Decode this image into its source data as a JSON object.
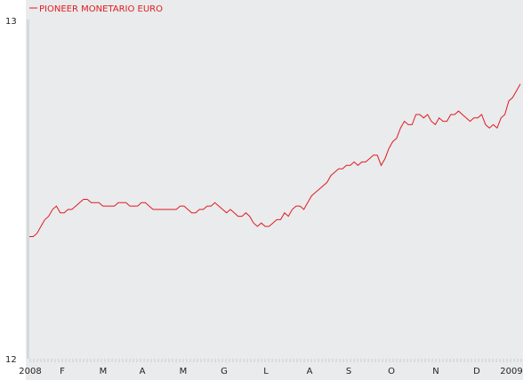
{
  "colors": {
    "background": "#e9ebec",
    "series": "#e11a22",
    "axis": "#d6d9db"
  },
  "chart_data": {
    "type": "line",
    "legend": "top-left",
    "grid": false,
    "series": [
      {
        "name": "PIONEER MONETARIO EURO",
        "values": [
          12.36,
          12.36,
          12.37,
          12.39,
          12.41,
          12.42,
          12.44,
          12.45,
          12.43,
          12.43,
          12.44,
          12.44,
          12.45,
          12.46,
          12.47,
          12.47,
          12.46,
          12.46,
          12.46,
          12.45,
          12.45,
          12.45,
          12.45,
          12.46,
          12.46,
          12.46,
          12.45,
          12.45,
          12.45,
          12.46,
          12.46,
          12.45,
          12.44,
          12.44,
          12.44,
          12.44,
          12.44,
          12.44,
          12.44,
          12.45,
          12.45,
          12.44,
          12.43,
          12.43,
          12.44,
          12.44,
          12.45,
          12.45,
          12.46,
          12.45,
          12.44,
          12.43,
          12.44,
          12.43,
          12.42,
          12.42,
          12.43,
          12.42,
          12.4,
          12.39,
          12.4,
          12.39,
          12.39,
          12.4,
          12.41,
          12.41,
          12.43,
          12.42,
          12.44,
          12.45,
          12.45,
          12.44,
          12.46,
          12.48,
          12.49,
          12.5,
          12.51,
          12.52,
          12.54,
          12.55,
          12.56,
          12.56,
          12.57,
          12.57,
          12.58,
          12.57,
          12.58,
          12.58,
          12.59,
          12.6,
          12.6,
          12.57,
          12.59,
          12.62,
          12.64,
          12.65,
          12.68,
          12.7,
          12.69,
          12.69,
          12.72,
          12.72,
          12.71,
          12.72,
          12.7,
          12.69,
          12.71,
          12.7,
          12.7,
          12.72,
          12.72,
          12.73,
          12.72,
          12.71,
          12.7,
          12.71,
          12.71,
          12.72,
          12.69,
          12.68,
          12.69,
          12.68,
          12.71,
          12.72,
          12.76,
          12.77,
          12.79,
          12.81
        ]
      }
    ],
    "x_labels": [
      "2008",
      "F",
      "M",
      "A",
      "M",
      "G",
      "L",
      "A",
      "S",
      "O",
      "N",
      "D",
      "2009"
    ],
    "ylim": [
      12,
      13
    ],
    "y_ticks": [
      "13",
      "12"
    ]
  }
}
